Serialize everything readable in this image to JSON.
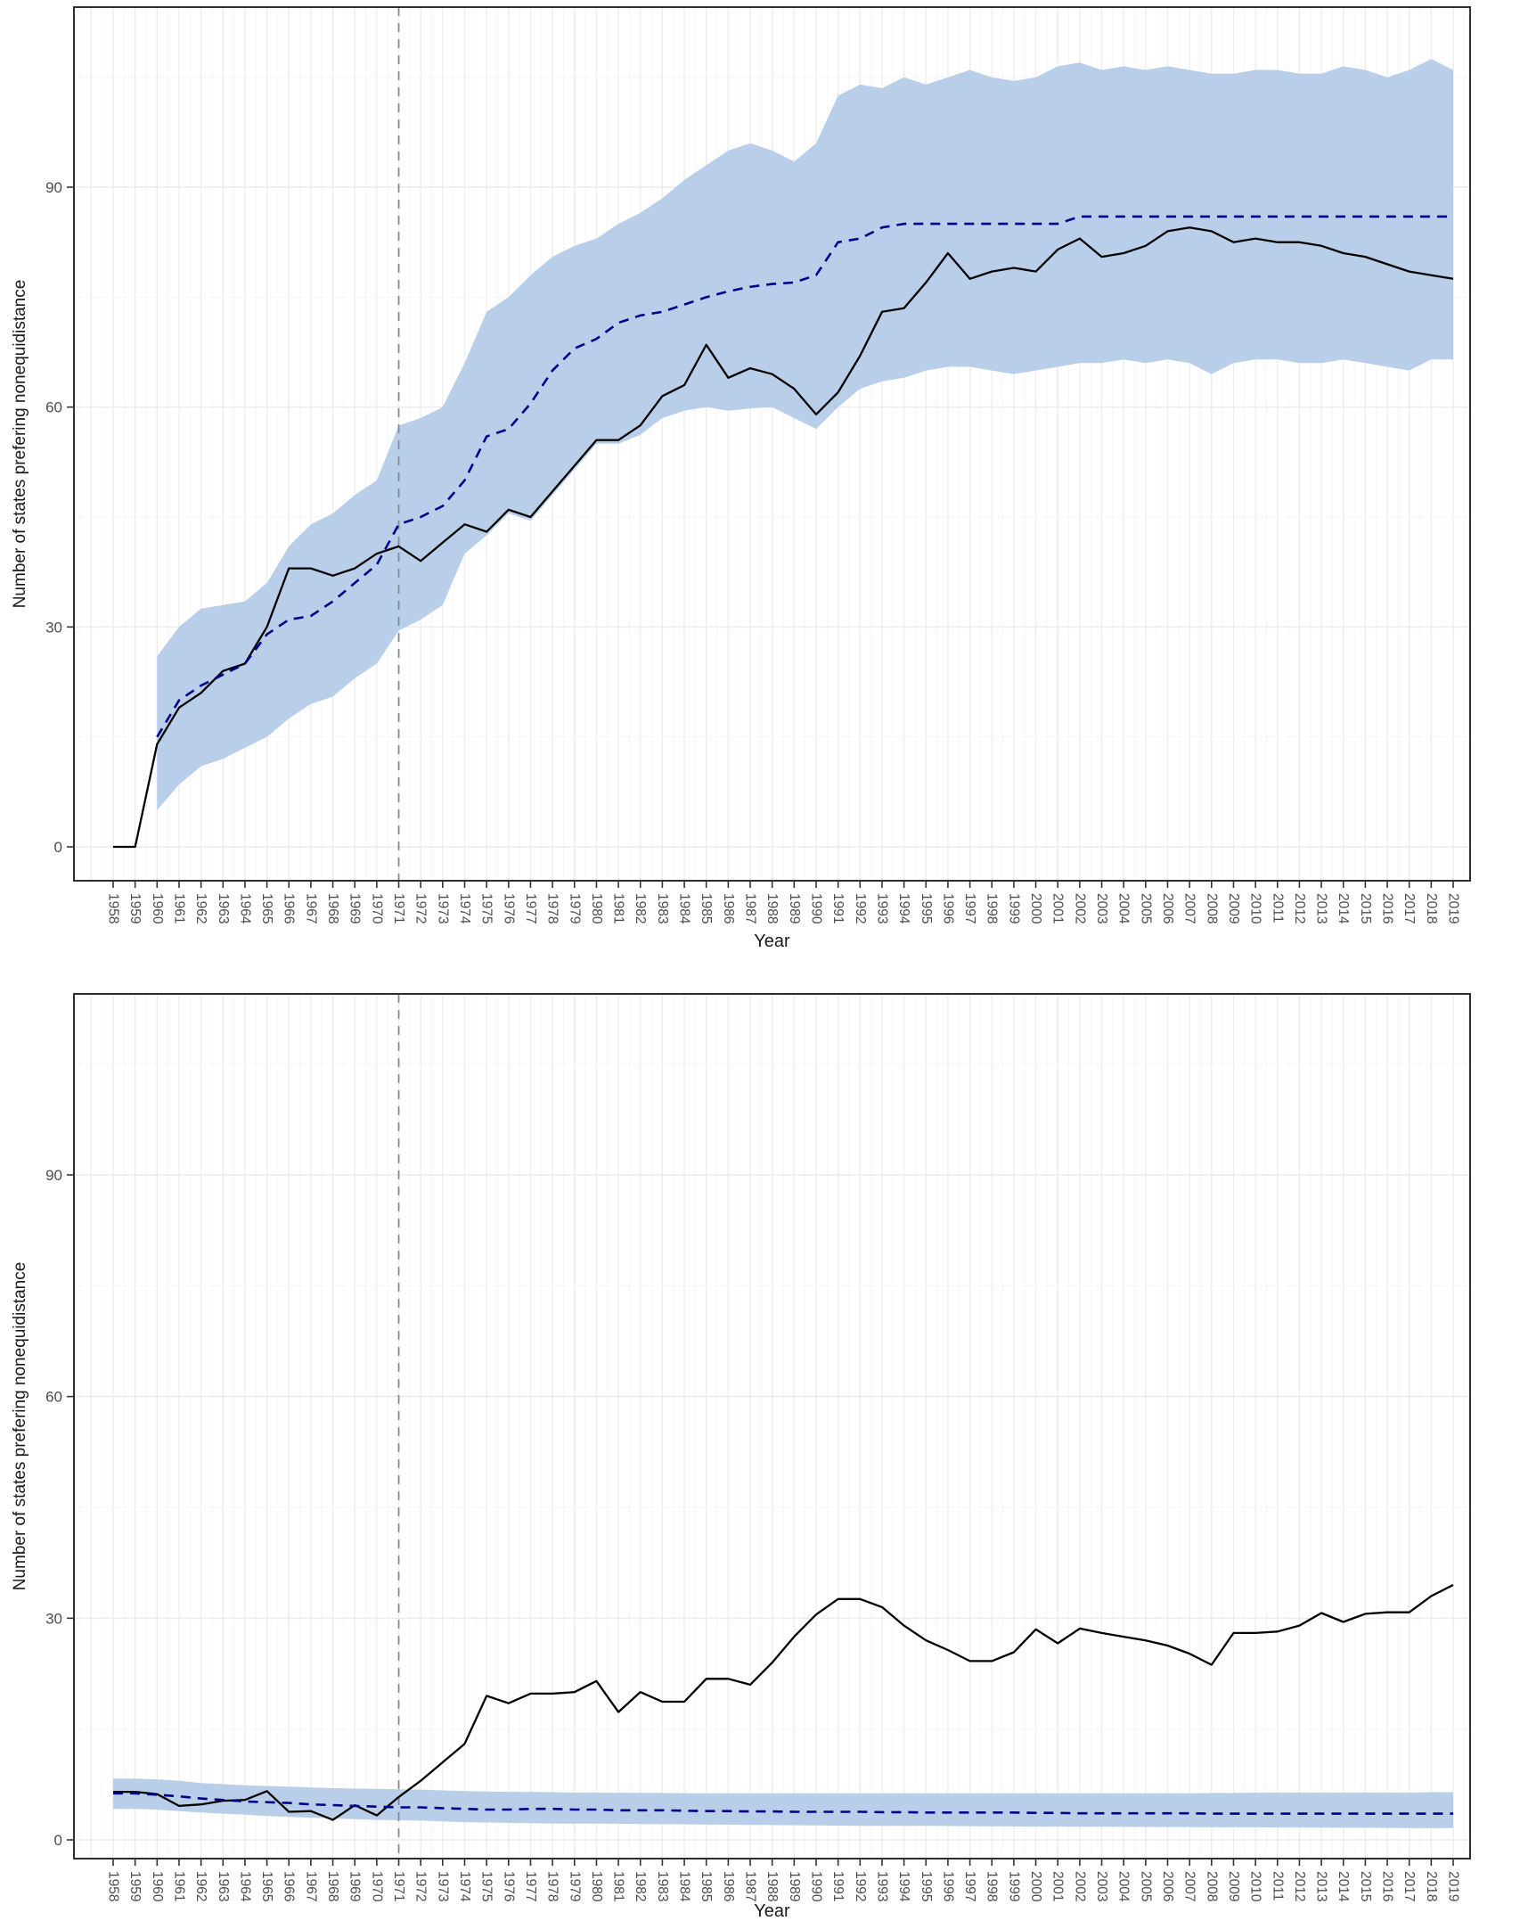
{
  "page": {
    "background": "#ffffff"
  },
  "colors": {
    "band": "#b9cfe9",
    "observed_line": "#000000",
    "synthetic_line": "#00008b",
    "treatment_vline": "#8a8a8a",
    "grid_major": "#ececec",
    "grid_minor": "#f6f6f6",
    "panel_border": "#2e2e2e",
    "tick_text": "#4d4d4d",
    "title_text": "#1a1a1a"
  },
  "chart_data": [
    {
      "type": "line",
      "title": "",
      "xlabel": "Year",
      "ylabel": "Number of states prefering nonequidistance",
      "grid": "on",
      "legend": "none",
      "ylim": [
        -4.6,
        114.6
      ],
      "y_ticks": [
        0,
        30,
        60,
        90
      ],
      "y_tick_labels": [
        "0",
        "30",
        "60",
        "90"
      ],
      "y_minor_ticks": [
        15,
        45,
        75,
        105
      ],
      "x": [
        1958,
        1959,
        1960,
        1961,
        1962,
        1963,
        1964,
        1965,
        1966,
        1967,
        1968,
        1969,
        1970,
        1971,
        1972,
        1973,
        1974,
        1975,
        1976,
        1977,
        1978,
        1979,
        1980,
        1981,
        1982,
        1983,
        1984,
        1985,
        1986,
        1987,
        1988,
        1989,
        1990,
        1991,
        1992,
        1993,
        1994,
        1995,
        1996,
        1997,
        1998,
        1999,
        2000,
        2001,
        2002,
        2003,
        2004,
        2005,
        2006,
        2007,
        2008,
        2009,
        2010,
        2011,
        2012,
        2013,
        2014,
        2015,
        2016,
        2017,
        2018,
        2019
      ],
      "vline": {
        "x": 1971,
        "style": "dashed",
        "color": "#8a8a8a"
      },
      "band_color": "#b9cfe9",
      "series": [
        {
          "name": "observed",
          "style": "solid",
          "color": "#000000",
          "x_start": 1958,
          "values": [
            0,
            0,
            14,
            19,
            21,
            24,
            25,
            30,
            38,
            38,
            37,
            38,
            40,
            41,
            39,
            41.5,
            44,
            43,
            46,
            45,
            48.5,
            52,
            55.5,
            55.5,
            57.5,
            61.5,
            63,
            68.5,
            64,
            65.3,
            64.5,
            62.5,
            59,
            62,
            67,
            73,
            73.5,
            77,
            81,
            77.5,
            78.5,
            79,
            78.5,
            81.5,
            83,
            80.5,
            81,
            82,
            84,
            84.5,
            84,
            82.5,
            83,
            82.5,
            82.5,
            82,
            81,
            80.5,
            79.5,
            78.5,
            78,
            77.5
          ]
        },
        {
          "name": "synthetic_control",
          "style": "dashed",
          "color": "#00008b",
          "x_start": 1960,
          "values": [
            15,
            20,
            22,
            23.5,
            25,
            29,
            31,
            31.5,
            33.5,
            36,
            38.5,
            44,
            45,
            46.5,
            50,
            56,
            57,
            60.5,
            65,
            68,
            69.3,
            71.5,
            72.5,
            73,
            74,
            75,
            75.8,
            76.4,
            76.8,
            77,
            78,
            82.5,
            83,
            84.5,
            85,
            85,
            85,
            85,
            85,
            85,
            85,
            85,
            86,
            86,
            86,
            86,
            86,
            86,
            86,
            86,
            86,
            86,
            86,
            86,
            86,
            86,
            86,
            86,
            86,
            86
          ]
        },
        {
          "name": "ci_upper",
          "style": "band-upper",
          "x_start": 1960,
          "values": [
            26,
            30,
            32.5,
            33,
            33.5,
            36,
            41,
            44,
            45.5,
            48,
            50,
            57.5,
            58.5,
            60,
            66,
            73,
            75,
            78,
            80.5,
            82,
            83,
            85,
            86.5,
            88.5,
            91,
            93,
            95,
            96,
            95,
            93.5,
            96,
            102.5,
            104,
            103.5,
            105,
            104,
            105,
            106,
            105,
            104.5,
            105,
            106.5,
            107,
            106,
            106.5,
            106,
            106.5,
            106,
            105.5,
            105.5,
            106,
            106,
            105.5,
            105.5,
            106.5,
            106,
            105,
            106,
            107.5,
            106
          ]
        },
        {
          "name": "ci_lower",
          "style": "band-lower",
          "x_start": 1960,
          "values": [
            5,
            8.5,
            11,
            12,
            13.5,
            15,
            17.5,
            19.5,
            20.5,
            23,
            25,
            29.5,
            31,
            33,
            40,
            42.5,
            45.5,
            44.5,
            48,
            51.5,
            55,
            55,
            56.2,
            58.5,
            59.5,
            60,
            59.5,
            59.8,
            60,
            58.5,
            57,
            60,
            62.5,
            63.5,
            64,
            65,
            65.5,
            65.5,
            65,
            64.5,
            65,
            65.5,
            66,
            66,
            66.5,
            66,
            66.5,
            66,
            64.5,
            66,
            66.5,
            66.5,
            66,
            66,
            66.5,
            66,
            65.5,
            65,
            66.5,
            66.5
          ]
        }
      ]
    },
    {
      "type": "line",
      "title": "",
      "xlabel": "Year",
      "ylabel": "Number of states prefering nonequidistance",
      "grid": "on",
      "legend": "none",
      "ylim": [
        -2.5,
        114.5
      ],
      "y_ticks": [
        0,
        30,
        60,
        90
      ],
      "y_tick_labels": [
        "0",
        "30",
        "60",
        "90"
      ],
      "y_minor_ticks": [
        15,
        45,
        75,
        105
      ],
      "x": [
        1958,
        1959,
        1960,
        1961,
        1962,
        1963,
        1964,
        1965,
        1966,
        1967,
        1968,
        1969,
        1970,
        1971,
        1972,
        1973,
        1974,
        1975,
        1976,
        1977,
        1978,
        1979,
        1980,
        1981,
        1982,
        1983,
        1984,
        1985,
        1986,
        1987,
        1988,
        1989,
        1990,
        1991,
        1992,
        1993,
        1994,
        1995,
        1996,
        1997,
        1998,
        1999,
        2000,
        2001,
        2002,
        2003,
        2004,
        2005,
        2006,
        2007,
        2008,
        2009,
        2010,
        2011,
        2012,
        2013,
        2014,
        2015,
        2016,
        2017,
        2018,
        2019
      ],
      "vline": {
        "x": 1971,
        "style": "dashed",
        "color": "#8a8a8a"
      },
      "band_color": "#b9cfe9",
      "series": [
        {
          "name": "observed",
          "style": "solid",
          "color": "#000000",
          "x_start": 1958,
          "values": [
            6.5,
            6.5,
            6.2,
            4.6,
            4.8,
            5.3,
            5.4,
            6.6,
            3.8,
            3.9,
            2.7,
            4.7,
            3.3,
            5.8,
            8,
            10.5,
            13,
            19.5,
            18.5,
            19.8,
            19.8,
            20,
            21.5,
            17.3,
            20,
            18.7,
            18.7,
            21.8,
            21.8,
            21,
            24,
            27.5,
            30.5,
            32.6,
            32.6,
            31.5,
            29,
            27,
            25.7,
            24.2,
            24.2,
            25.4,
            28.5,
            26.6,
            28.6,
            28,
            27.5,
            27,
            26.3,
            25.2,
            23.7,
            28,
            28,
            28.2,
            29,
            30.7,
            29.5,
            30.6,
            30.8,
            30.8,
            33,
            34.5
          ]
        },
        {
          "name": "synthetic_control",
          "style": "dashed",
          "color": "#00008b",
          "x_start": 1958,
          "values": [
            6.3,
            6.3,
            6.1,
            5.9,
            5.6,
            5.4,
            5.2,
            5.1,
            5.0,
            4.8,
            4.7,
            4.6,
            4.5,
            4.4,
            4.4,
            4.3,
            4.2,
            4.1,
            4.1,
            4.2,
            4.2,
            4.1,
            4.1,
            4.0,
            4.0,
            4.0,
            3.95,
            3.9,
            3.9,
            3.85,
            3.85,
            3.8,
            3.8,
            3.8,
            3.8,
            3.75,
            3.75,
            3.7,
            3.7,
            3.7,
            3.7,
            3.7,
            3.65,
            3.65,
            3.6,
            3.6,
            3.6,
            3.6,
            3.6,
            3.6,
            3.55,
            3.55,
            3.55,
            3.55,
            3.55,
            3.55,
            3.55,
            3.55,
            3.55,
            3.55,
            3.55,
            3.55
          ]
        },
        {
          "name": "ci_upper",
          "style": "band-upper",
          "x_start": 1958,
          "values": [
            8.3,
            8.3,
            8.2,
            8.0,
            7.7,
            7.55,
            7.4,
            7.3,
            7.2,
            7.1,
            7.0,
            6.95,
            6.9,
            6.85,
            6.8,
            6.7,
            6.6,
            6.55,
            6.5,
            6.5,
            6.45,
            6.4,
            6.4,
            6.38,
            6.36,
            6.34,
            6.32,
            6.3,
            6.3,
            6.3,
            6.3,
            6.3,
            6.3,
            6.3,
            6.3,
            6.3,
            6.3,
            6.3,
            6.3,
            6.3,
            6.3,
            6.3,
            6.3,
            6.3,
            6.3,
            6.3,
            6.3,
            6.3,
            6.3,
            6.3,
            6.35,
            6.35,
            6.4,
            6.4,
            6.4,
            6.4,
            6.4,
            6.4,
            6.4,
            6.4,
            6.45,
            6.45
          ]
        },
        {
          "name": "ci_lower",
          "style": "band-lower",
          "x_start": 1958,
          "values": [
            4.2,
            4.2,
            4.1,
            3.9,
            3.7,
            3.55,
            3.4,
            3.25,
            3.1,
            3.0,
            2.9,
            2.8,
            2.7,
            2.65,
            2.6,
            2.5,
            2.4,
            2.35,
            2.3,
            2.25,
            2.2,
            2.2,
            2.2,
            2.18,
            2.15,
            2.12,
            2.1,
            2.08,
            2.05,
            2.02,
            2.0,
            1.98,
            1.95,
            1.93,
            1.9,
            1.9,
            1.9,
            1.9,
            1.88,
            1.86,
            1.84,
            1.82,
            1.8,
            1.8,
            1.78,
            1.78,
            1.76,
            1.75,
            1.74,
            1.72,
            1.7,
            1.7,
            1.7,
            1.68,
            1.68,
            1.66,
            1.65,
            1.64,
            1.62,
            1.6,
            1.6,
            1.6
          ]
        }
      ]
    }
  ]
}
